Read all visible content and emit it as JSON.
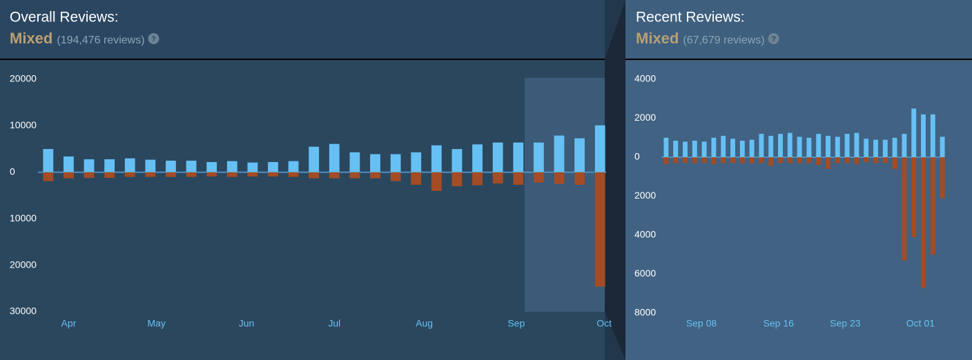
{
  "chart_data": [
    {
      "type": "bar",
      "title": "Overall Reviews:",
      "summary": "Mixed",
      "review_count": "(194,476 reviews)",
      "x": [
        0,
        1,
        2,
        3,
        4,
        5,
        6,
        7,
        8,
        9,
        10,
        11,
        12,
        13,
        14,
        15,
        16,
        17,
        18,
        19,
        20,
        21,
        22,
        23,
        24,
        25,
        26,
        27
      ],
      "series": [
        {
          "color": "#66c0f4",
          "values": [
            5000,
            3400,
            2800,
            2800,
            3000,
            2700,
            2500,
            2500,
            2200,
            2400,
            2100,
            2200,
            2400,
            5500,
            6100,
            4300,
            3900,
            3900,
            4300,
            5800,
            5000,
            6000,
            6400,
            6400,
            6400,
            7900,
            7300,
            10100
          ]
        },
        {
          "color": "#a34c25",
          "values": [
            -1900,
            -1300,
            -1200,
            -1200,
            -1000,
            -1000,
            -1000,
            -1000,
            -900,
            -1000,
            -900,
            -900,
            -1000,
            -1300,
            -1300,
            -1300,
            -1300,
            -1900,
            -2700,
            -4000,
            -3000,
            -2800,
            -2400,
            -2700,
            -2200,
            -2500,
            -2700,
            -24600
          ]
        }
      ],
      "xlim": [
        -0.5,
        27.5
      ],
      "xticks": [
        {
          "value": 1.0,
          "label": "Apr"
        },
        {
          "value": 5.3,
          "label": "May"
        },
        {
          "value": 9.7,
          "label": "Jun"
        },
        {
          "value": 14.0,
          "label": "Jul"
        },
        {
          "value": 18.4,
          "label": "Aug"
        },
        {
          "value": 22.9,
          "label": "Sep"
        },
        {
          "value": 27.2,
          "label": "Oct"
        }
      ],
      "ylim": [
        -30000,
        20000
      ],
      "yticks": [
        20000,
        10000,
        0,
        {
          "value": -10000,
          "label": "10000"
        },
        {
          "value": -20000,
          "label": "20000"
        },
        {
          "value": -30000,
          "label": "30000"
        }
      ]
    },
    {
      "type": "bar",
      "title": "Recent Reviews:",
      "summary": "Mixed",
      "review_count": "(67,679 reviews)",
      "x": [
        0,
        1,
        2,
        3,
        4,
        5,
        6,
        7,
        8,
        9,
        10,
        11,
        12,
        13,
        14,
        15,
        16,
        17,
        18,
        19,
        20,
        21,
        22,
        23,
        24,
        25,
        26,
        27,
        28,
        29
      ],
      "series": [
        {
          "color": "#66c0f4",
          "values": [
            1000,
            850,
            800,
            850,
            800,
            1000,
            1100,
            950,
            850,
            900,
            1200,
            1100,
            1200,
            1250,
            1050,
            1000,
            1200,
            1100,
            1050,
            1200,
            1250,
            950,
            900,
            900,
            1000,
            1200,
            2500,
            2200,
            2200,
            1050
          ]
        },
        {
          "color": "#a34c25",
          "values": [
            -350,
            -300,
            -300,
            -300,
            -300,
            -350,
            -300,
            -300,
            -300,
            -300,
            -300,
            -450,
            -300,
            -300,
            -300,
            -300,
            -400,
            -600,
            -300,
            -300,
            -350,
            -250,
            -300,
            -300,
            -600,
            -5300,
            -4100,
            -6700,
            -5000,
            -2100
          ]
        }
      ],
      "xlim": [
        -0.5,
        29.5
      ],
      "xticks": [
        {
          "value": 3.7,
          "label": "Sep 08"
        },
        {
          "value": 11.8,
          "label": "Sep 16"
        },
        {
          "value": 18.8,
          "label": "Sep 23"
        },
        {
          "value": 26.7,
          "label": "Oct 01"
        }
      ],
      "ylim": [
        -8000,
        4000
      ],
      "yticks": [
        4000,
        2000,
        0,
        {
          "value": -2000,
          "label": "2000"
        },
        {
          "value": -4000,
          "label": "4000"
        },
        {
          "value": -6000,
          "label": "6000"
        },
        {
          "value": -8000,
          "label": "8000"
        }
      ]
    }
  ]
}
